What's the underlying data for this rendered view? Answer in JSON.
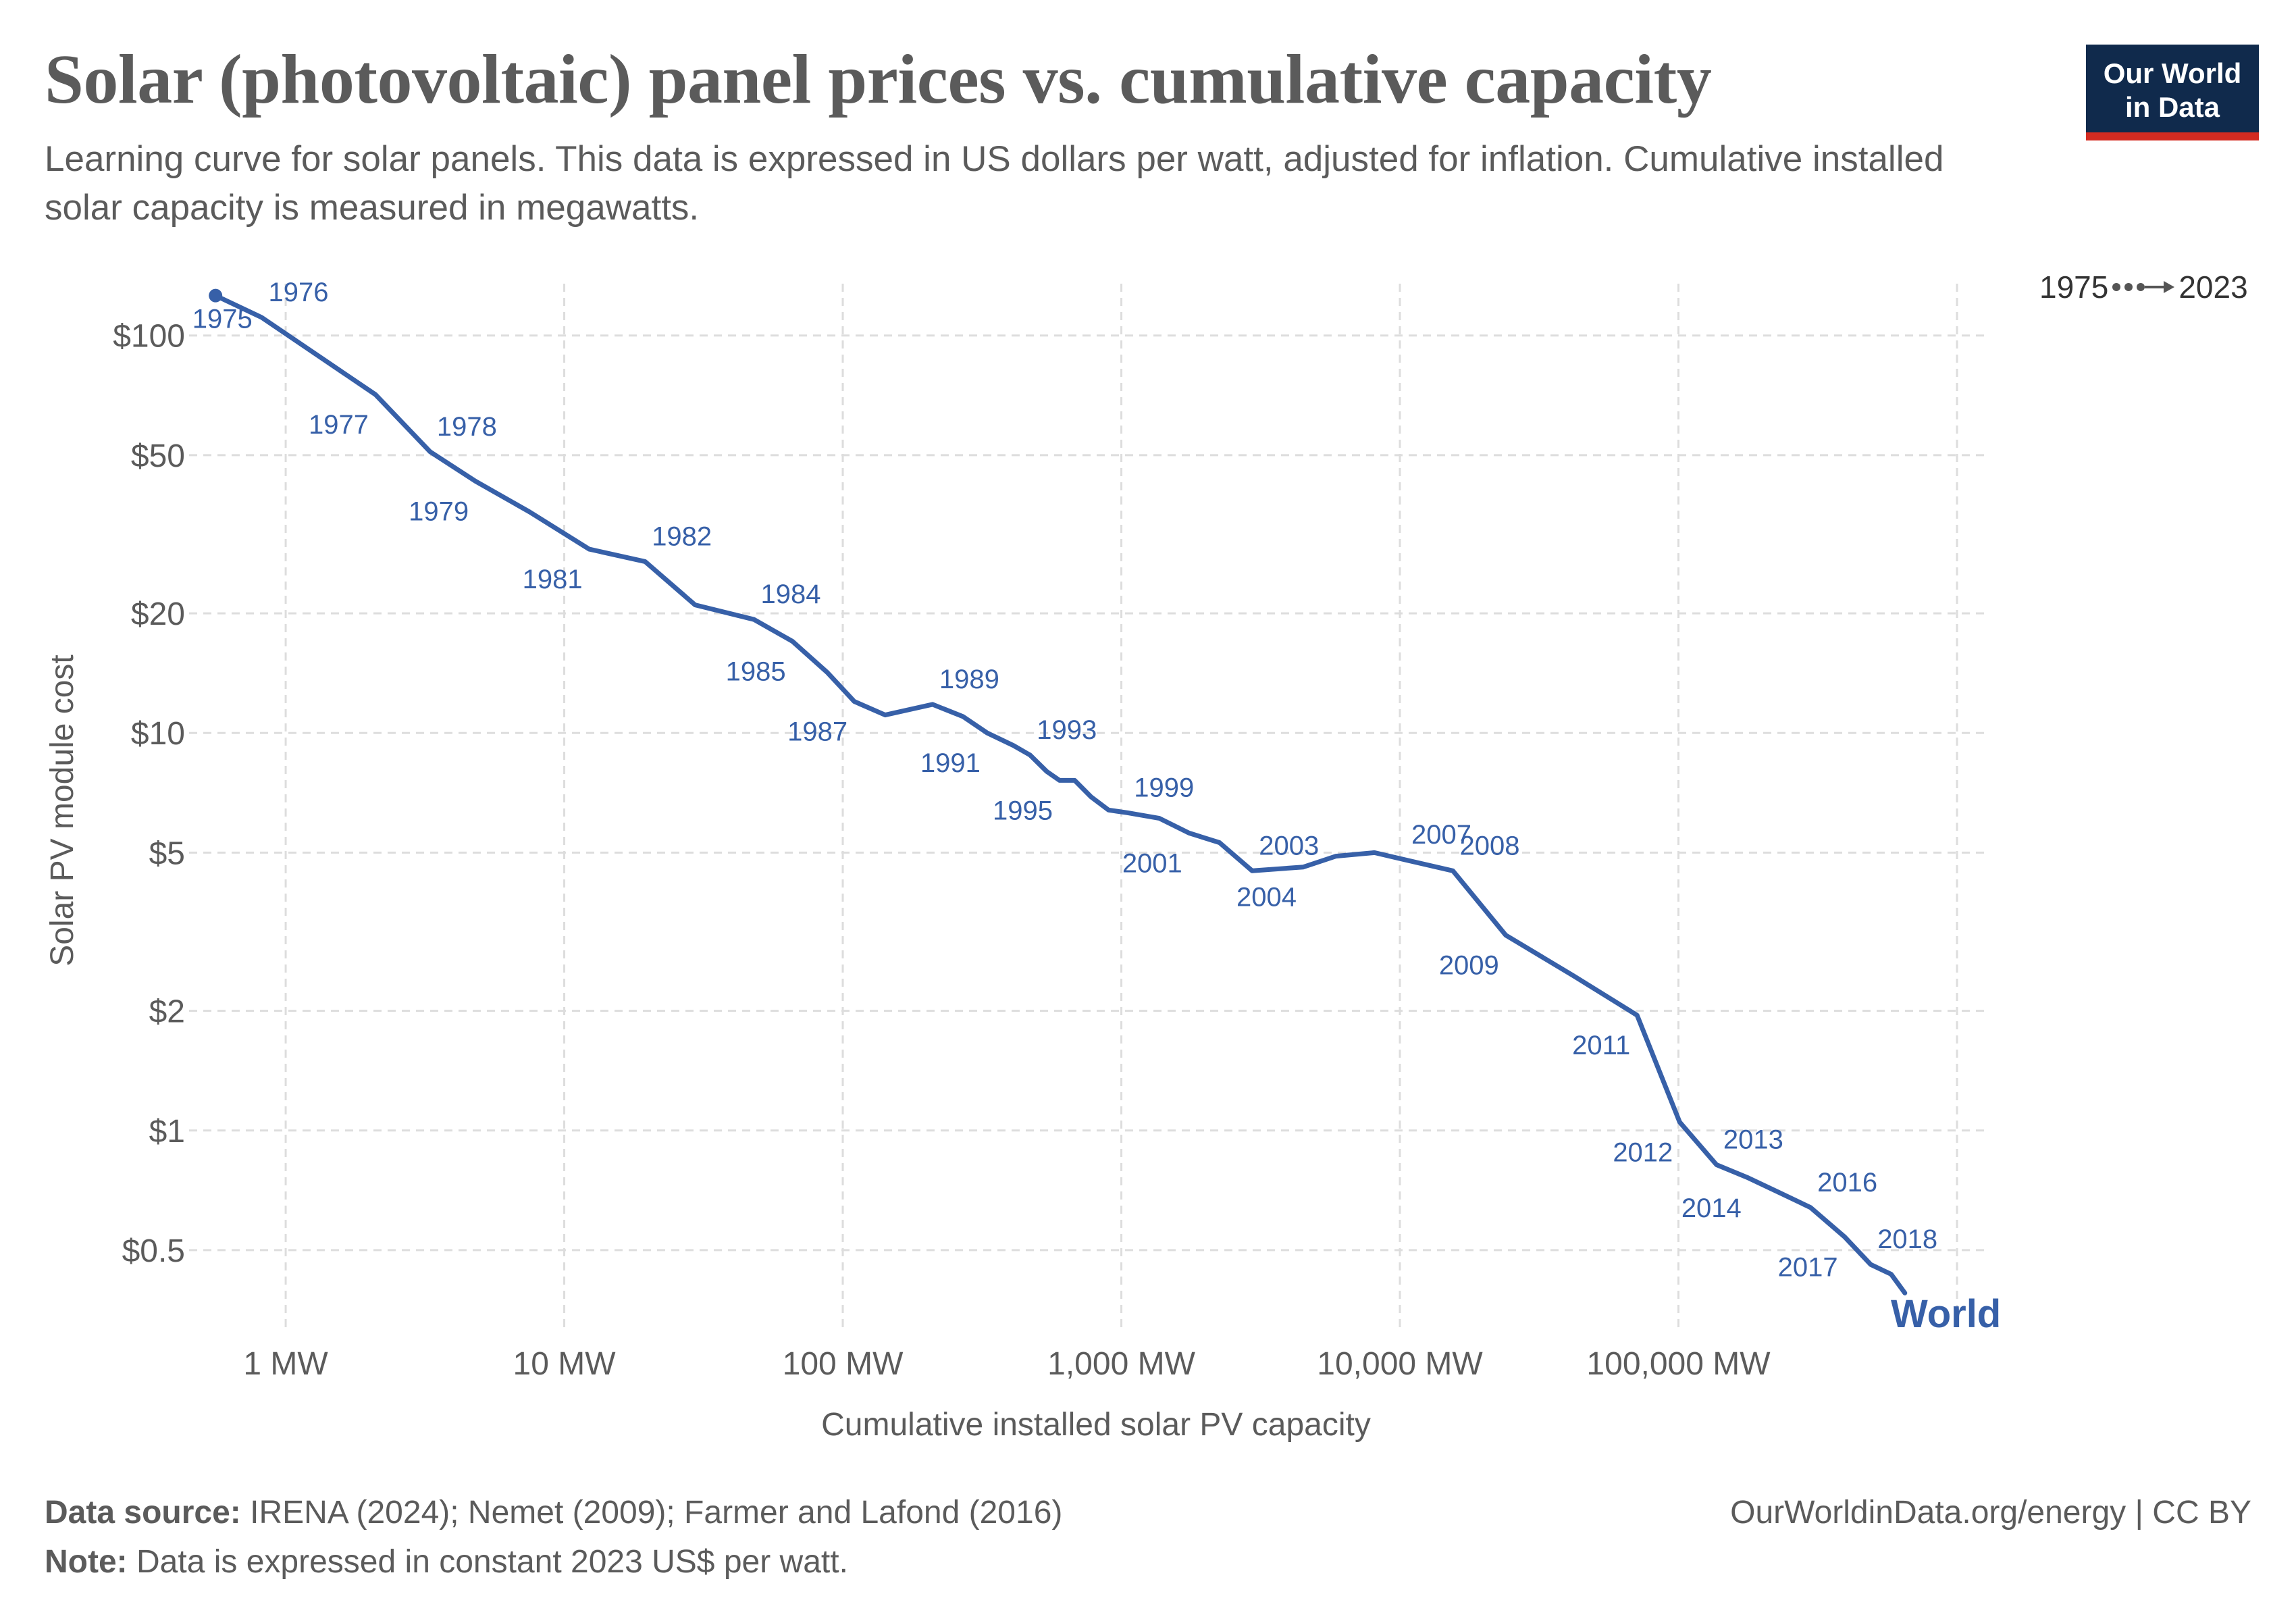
{
  "header": {
    "title": "Solar (photovoltaic) panel prices vs. cumulative capacity",
    "subtitle": "Learning curve for solar panels. This data is expressed in US dollars per watt, adjusted for inflation. Cumulative installed solar capacity is measured in megawatts.",
    "logo_line1": "Our World",
    "logo_line2": "in Data"
  },
  "timeline": {
    "start": "1975",
    "end": "2023"
  },
  "footer": {
    "source_label": "Data source:",
    "source_text": "IRENA (2024); Nemet (2009); Farmer and Lafond (2016)",
    "note_label": "Note:",
    "note_text": "Data is expressed in constant 2023 US$ per watt.",
    "url": "OurWorldinData.org/energy | CC BY"
  },
  "colors": {
    "series": "#3760a8",
    "text": "#5b5b5b",
    "grid": "#dddddd",
    "logo_bg": "#102a4c",
    "logo_accent": "#d42b21"
  },
  "chart_data": {
    "type": "line",
    "title": "Solar (photovoltaic) panel prices vs. cumulative capacity",
    "xlabel": "Cumulative installed solar PV capacity",
    "ylabel": "Solar PV module cost",
    "xscale": "log",
    "yscale": "log",
    "xlim": [
      0.45,
      1300000
    ],
    "ylim": [
      0.32,
      135
    ],
    "xticks": [
      {
        "value": 1,
        "label": "1 MW"
      },
      {
        "value": 10,
        "label": "10 MW"
      },
      {
        "value": 100,
        "label": "100 MW"
      },
      {
        "value": 1000,
        "label": "1,000 MW"
      },
      {
        "value": 10000,
        "label": "10,000 MW"
      },
      {
        "value": 100000,
        "label": "100,000 MW"
      }
    ],
    "yticks": [
      {
        "value": 100,
        "label": "$100"
      },
      {
        "value": 50,
        "label": "$50"
      },
      {
        "value": 20,
        "label": "$20"
      },
      {
        "value": 10,
        "label": "$10"
      },
      {
        "value": 5,
        "label": "$5"
      },
      {
        "value": 2,
        "label": "$2"
      },
      {
        "value": 1,
        "label": "$1"
      },
      {
        "value": 0.5,
        "label": "$0.5"
      }
    ],
    "extra_vgrid": [
      1000000
    ],
    "series": [
      {
        "name": "World",
        "points": [
          {
            "year": "1975",
            "x": 0.56,
            "y": 126
          },
          {
            "year": "1976",
            "x": 0.82,
            "y": 111
          },
          {
            "year": "1977",
            "x": 2.1,
            "y": 71
          },
          {
            "year": "1978",
            "x": 3.3,
            "y": 51
          },
          {
            "year": "1979",
            "x": 4.8,
            "y": 43
          },
          {
            "year": "1980",
            "x": 7.5,
            "y": 36
          },
          {
            "year": "1981",
            "x": 12.3,
            "y": 29
          },
          {
            "year": "1982",
            "x": 19.5,
            "y": 27
          },
          {
            "year": "1983",
            "x": 29.5,
            "y": 21
          },
          {
            "year": "1984",
            "x": 48,
            "y": 19.3
          },
          {
            "year": "1985",
            "x": 66,
            "y": 17
          },
          {
            "year": "1986",
            "x": 88,
            "y": 14.2
          },
          {
            "year": "1987",
            "x": 110,
            "y": 12
          },
          {
            "year": "1988",
            "x": 142,
            "y": 11.1
          },
          {
            "year": "1989",
            "x": 210,
            "y": 11.8
          },
          {
            "year": "1990",
            "x": 270,
            "y": 11
          },
          {
            "year": "1991",
            "x": 330,
            "y": 10
          },
          {
            "year": "1992",
            "x": 410,
            "y": 9.3
          },
          {
            "year": "1993",
            "x": 470,
            "y": 8.8
          },
          {
            "year": "1994",
            "x": 540,
            "y": 8
          },
          {
            "year": "1995",
            "x": 600,
            "y": 7.6
          },
          {
            "year": "1996",
            "x": 680,
            "y": 7.6
          },
          {
            "year": "1997",
            "x": 780,
            "y": 6.9
          },
          {
            "year": "1998",
            "x": 900,
            "y": 6.4
          },
          {
            "year": "1999",
            "x": 1050,
            "y": 6.3
          },
          {
            "year": "2000",
            "x": 1370,
            "y": 6.1
          },
          {
            "year": "2001",
            "x": 1750,
            "y": 5.6
          },
          {
            "year": "2002",
            "x": 2250,
            "y": 5.3
          },
          {
            "year": "2003",
            "x": 2950,
            "y": 4.5
          },
          {
            "year": "2004",
            "x": 4500,
            "y": 4.6
          },
          {
            "year": "2005",
            "x": 5900,
            "y": 4.9
          },
          {
            "year": "2006",
            "x": 8100,
            "y": 5.0
          },
          {
            "year": "2007",
            "x": 10400,
            "y": 4.8
          },
          {
            "year": "2008",
            "x": 15500,
            "y": 4.5
          },
          {
            "year": "2009",
            "x": 24000,
            "y": 3.1
          },
          {
            "year": "2010",
            "x": 42000,
            "y": 2.45
          },
          {
            "year": "2011",
            "x": 71000,
            "y": 1.95
          },
          {
            "year": "2012",
            "x": 101000,
            "y": 1.05
          },
          {
            "year": "2013",
            "x": 137000,
            "y": 0.82
          },
          {
            "year": "2014",
            "x": 178000,
            "y": 0.76
          },
          {
            "year": "2015",
            "x": 228000,
            "y": 0.7
          },
          {
            "year": "2016",
            "x": 298000,
            "y": 0.64
          },
          {
            "year": "2017",
            "x": 395000,
            "y": 0.54
          },
          {
            "year": "2018",
            "x": 490000,
            "y": 0.46
          },
          {
            "year": "2019",
            "x": 580000,
            "y": 0.435
          },
          {
            "year": "2020",
            "x": 650000,
            "y": 0.39
          }
        ],
        "labeled_years": [
          "1975",
          "1976",
          "1977",
          "1978",
          "1979",
          "1981",
          "1982",
          "1984",
          "1985",
          "1987",
          "1989",
          "1991",
          "1993",
          "1995",
          "1999",
          "2001",
          "2003",
          "2004",
          "2007",
          "2008",
          "2009",
          "2011",
          "2012",
          "2013",
          "2014",
          "2016",
          "2017",
          "2018"
        ]
      }
    ],
    "series_label": "World"
  }
}
